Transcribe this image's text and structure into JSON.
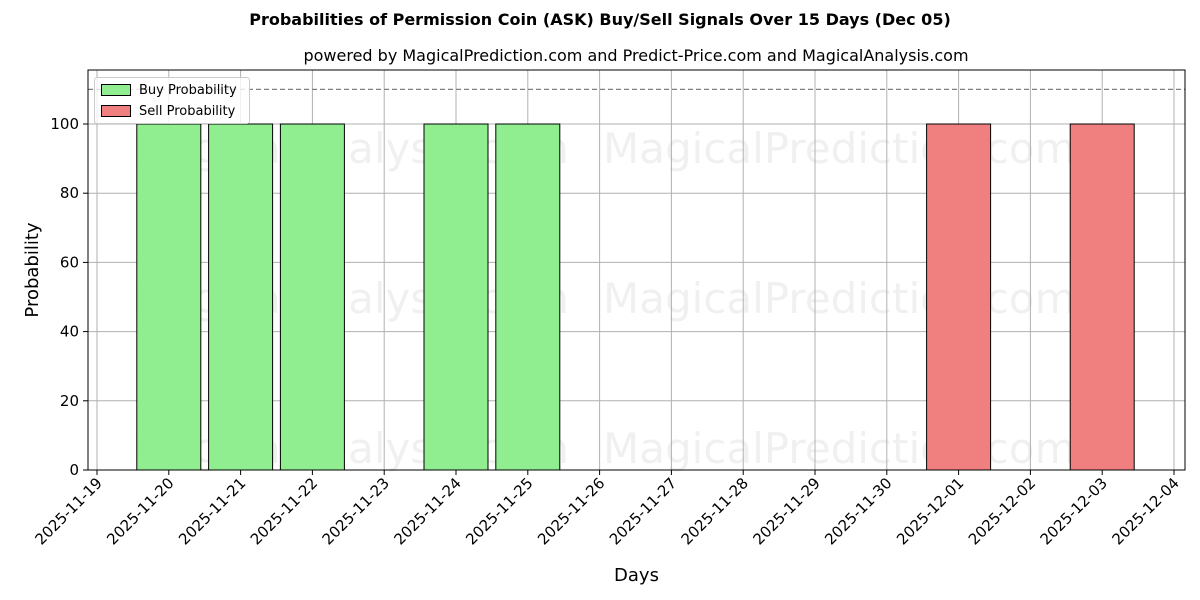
{
  "title": "Probabilities of Permission Coin (ASK) Buy/Sell Signals Over 15 Days (Dec 05)",
  "subtitle": "powered by MagicalPrediction.com and Predict-Price.com and MagicalAnalysis.com",
  "watermarks": [
    "MagicalAnalysis.com",
    "MagicalPrediction.com"
  ],
  "legend": {
    "buy_label": "Buy Probability",
    "sell_label": "Sell Probability"
  },
  "colors": {
    "buy": "#90ee90",
    "sell": "#f08080",
    "threshold": "#808080"
  },
  "chart_data": {
    "type": "bar",
    "title": "Probabilities of Permission Coin (ASK) Buy/Sell Signals Over 15 Days (Dec 05)",
    "subtitle": "powered by MagicalPrediction.com and Predict-Price.com and MagicalAnalysis.com",
    "xlabel": "Days",
    "ylabel": "Probability",
    "ylim": [
      0,
      115
    ],
    "yticks": [
      0,
      20,
      40,
      60,
      80,
      100
    ],
    "grid": true,
    "legend_position": "upper left",
    "threshold_line": 110,
    "x_ticks": [
      "2025-11-19",
      "2025-11-20",
      "2025-11-21",
      "2025-11-22",
      "2025-11-23",
      "2025-11-24",
      "2025-11-25",
      "2025-11-26",
      "2025-11-27",
      "2025-11-28",
      "2025-11-29",
      "2025-11-30",
      "2025-12-01",
      "2025-12-02",
      "2025-12-03",
      "2025-12-04"
    ],
    "categories": [
      "2025-11-20",
      "2025-11-21",
      "2025-11-22",
      "2025-11-23",
      "2025-11-24",
      "2025-11-25",
      "2025-11-26",
      "2025-11-27",
      "2025-11-28",
      "2025-11-29",
      "2025-11-30",
      "2025-12-01",
      "2025-12-02",
      "2025-12-03"
    ],
    "series": [
      {
        "name": "Buy Probability",
        "values": [
          100,
          100,
          100,
          0,
          100,
          100,
          0,
          0,
          0,
          0,
          0,
          0,
          0,
          0
        ]
      },
      {
        "name": "Sell Probability",
        "values": [
          0,
          0,
          0,
          0,
          0,
          0,
          0,
          0,
          0,
          0,
          0,
          100,
          0,
          100
        ]
      }
    ]
  }
}
